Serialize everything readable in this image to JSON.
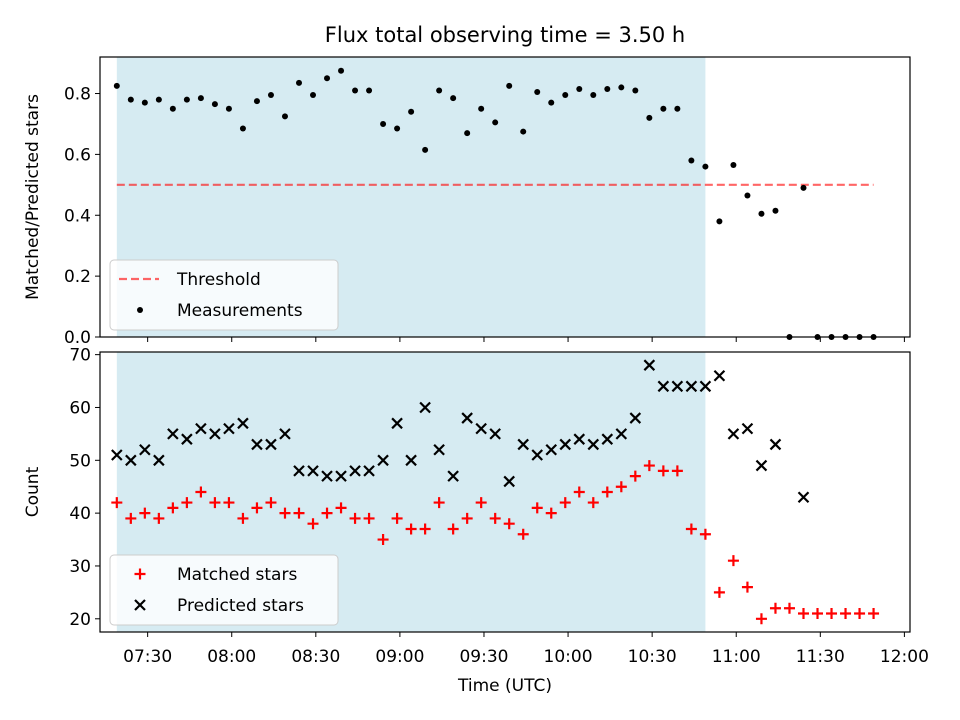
{
  "title": "Flux total observing time = 3.50 h",
  "colors": {
    "shade": "#add8e6",
    "threshold": "#ff0000",
    "measurement": "#000000",
    "matched": "#ff0000",
    "predicted": "#000000"
  },
  "chart_data": [
    {
      "type": "scatter",
      "ylabel": "Matched/Predicted stars",
      "xlabel": "",
      "xlim": [
        "07:13",
        "12:02"
      ],
      "ylim": [
        0.0,
        0.92
      ],
      "yticks": [
        "0.0",
        "0.2",
        "0.4",
        "0.6",
        "0.8"
      ],
      "shaded_span": [
        "07:19",
        "10:49"
      ],
      "legend_position": "lower-left",
      "threshold": {
        "name": "Threshold",
        "y": 0.5,
        "x": [
          "07:19",
          "11:49"
        ],
        "style": "dashed"
      },
      "series": [
        {
          "name": "Measurements",
          "marker": "dot",
          "points": [
            [
              "07:19",
              0.825
            ],
            [
              "07:24",
              0.78
            ],
            [
              "07:29",
              0.77
            ],
            [
              "07:34",
              0.78
            ],
            [
              "07:39",
              0.75
            ],
            [
              "07:44",
              0.78
            ],
            [
              "07:49",
              0.785
            ],
            [
              "07:54",
              0.765
            ],
            [
              "07:59",
              0.75
            ],
            [
              "08:04",
              0.685
            ],
            [
              "08:09",
              0.775
            ],
            [
              "08:14",
              0.795
            ],
            [
              "08:19",
              0.725
            ],
            [
              "08:24",
              0.835
            ],
            [
              "08:29",
              0.795
            ],
            [
              "08:34",
              0.85
            ],
            [
              "08:39",
              0.875
            ],
            [
              "08:44",
              0.81
            ],
            [
              "08:49",
              0.81
            ],
            [
              "08:54",
              0.7
            ],
            [
              "08:59",
              0.685
            ],
            [
              "09:04",
              0.74
            ],
            [
              "09:09",
              0.615
            ],
            [
              "09:14",
              0.81
            ],
            [
              "09:19",
              0.785
            ],
            [
              "09:24",
              0.67
            ],
            [
              "09:29",
              0.75
            ],
            [
              "09:34",
              0.705
            ],
            [
              "09:39",
              0.825
            ],
            [
              "09:44",
              0.675
            ],
            [
              "09:49",
              0.805
            ],
            [
              "09:54",
              0.77
            ],
            [
              "09:59",
              0.795
            ],
            [
              "10:04",
              0.815
            ],
            [
              "10:09",
              0.795
            ],
            [
              "10:14",
              0.815
            ],
            [
              "10:19",
              0.82
            ],
            [
              "10:24",
              0.81
            ],
            [
              "10:29",
              0.72
            ],
            [
              "10:34",
              0.75
            ],
            [
              "10:39",
              0.75
            ],
            [
              "10:44",
              0.58
            ],
            [
              "10:49",
              0.56
            ],
            [
              "10:54",
              0.38
            ],
            [
              "10:59",
              0.565
            ],
            [
              "11:04",
              0.465
            ],
            [
              "11:09",
              0.405
            ],
            [
              "11:14",
              0.415
            ],
            [
              "11:19",
              0.0
            ],
            [
              "11:24",
              0.49
            ],
            [
              "11:29",
              0.0
            ],
            [
              "11:34",
              0.0
            ],
            [
              "11:39",
              0.0
            ],
            [
              "11:44",
              0.0
            ],
            [
              "11:49",
              0.0
            ]
          ]
        }
      ]
    },
    {
      "type": "scatter",
      "ylabel": "Count",
      "xlabel": "Time (UTC)",
      "xlim": [
        "07:13",
        "12:02"
      ],
      "ylim": [
        17.5,
        70.5
      ],
      "yticks": [
        "20",
        "30",
        "40",
        "50",
        "60",
        "70"
      ],
      "xticks": [
        "07:30",
        "08:00",
        "08:30",
        "09:00",
        "09:30",
        "10:00",
        "10:30",
        "11:00",
        "11:30",
        "12:00"
      ],
      "shaded_span": [
        "07:19",
        "10:49"
      ],
      "legend_position": "lower-left",
      "series": [
        {
          "name": "Matched stars",
          "marker": "plus",
          "points": [
            [
              "07:19",
              42
            ],
            [
              "07:24",
              39
            ],
            [
              "07:29",
              40
            ],
            [
              "07:34",
              39
            ],
            [
              "07:39",
              41
            ],
            [
              "07:44",
              42
            ],
            [
              "07:49",
              44
            ],
            [
              "07:54",
              42
            ],
            [
              "07:59",
              42
            ],
            [
              "08:04",
              39
            ],
            [
              "08:09",
              41
            ],
            [
              "08:14",
              42
            ],
            [
              "08:19",
              40
            ],
            [
              "08:24",
              40
            ],
            [
              "08:29",
              38
            ],
            [
              "08:34",
              40
            ],
            [
              "08:39",
              41
            ],
            [
              "08:44",
              39
            ],
            [
              "08:49",
              39
            ],
            [
              "08:54",
              35
            ],
            [
              "08:59",
              39
            ],
            [
              "09:04",
              37
            ],
            [
              "09:09",
              37
            ],
            [
              "09:14",
              42
            ],
            [
              "09:19",
              37
            ],
            [
              "09:24",
              39
            ],
            [
              "09:29",
              42
            ],
            [
              "09:34",
              39
            ],
            [
              "09:39",
              38
            ],
            [
              "09:44",
              36
            ],
            [
              "09:49",
              41
            ],
            [
              "09:54",
              40
            ],
            [
              "09:59",
              42
            ],
            [
              "10:04",
              44
            ],
            [
              "10:09",
              42
            ],
            [
              "10:14",
              44
            ],
            [
              "10:19",
              45
            ],
            [
              "10:24",
              47
            ],
            [
              "10:29",
              49
            ],
            [
              "10:34",
              48
            ],
            [
              "10:39",
              48
            ],
            [
              "10:44",
              37
            ],
            [
              "10:49",
              36
            ],
            [
              "10:54",
              25
            ],
            [
              "10:59",
              31
            ],
            [
              "11:04",
              26
            ],
            [
              "11:09",
              20
            ],
            [
              "11:14",
              22
            ],
            [
              "11:19",
              22
            ],
            [
              "11:24",
              21
            ],
            [
              "11:29",
              21
            ],
            [
              "11:34",
              21
            ],
            [
              "11:39",
              21
            ],
            [
              "11:44",
              21
            ],
            [
              "11:49",
              21
            ]
          ]
        },
        {
          "name": "Predicted stars",
          "marker": "x",
          "points": [
            [
              "07:19",
              51
            ],
            [
              "07:24",
              50
            ],
            [
              "07:29",
              52
            ],
            [
              "07:34",
              50
            ],
            [
              "07:39",
              55
            ],
            [
              "07:44",
              54
            ],
            [
              "07:49",
              56
            ],
            [
              "07:54",
              55
            ],
            [
              "07:59",
              56
            ],
            [
              "08:04",
              57
            ],
            [
              "08:09",
              53
            ],
            [
              "08:14",
              53
            ],
            [
              "08:19",
              55
            ],
            [
              "08:24",
              48
            ],
            [
              "08:29",
              48
            ],
            [
              "08:34",
              47
            ],
            [
              "08:39",
              47
            ],
            [
              "08:44",
              48
            ],
            [
              "08:49",
              48
            ],
            [
              "08:54",
              50
            ],
            [
              "08:59",
              57
            ],
            [
              "09:04",
              50
            ],
            [
              "09:09",
              60
            ],
            [
              "09:14",
              52
            ],
            [
              "09:19",
              47
            ],
            [
              "09:24",
              58
            ],
            [
              "09:29",
              56
            ],
            [
              "09:34",
              55
            ],
            [
              "09:39",
              46
            ],
            [
              "09:44",
              53
            ],
            [
              "09:49",
              51
            ],
            [
              "09:54",
              52
            ],
            [
              "09:59",
              53
            ],
            [
              "10:04",
              54
            ],
            [
              "10:09",
              53
            ],
            [
              "10:14",
              54
            ],
            [
              "10:19",
              55
            ],
            [
              "10:24",
              58
            ],
            [
              "10:29",
              68
            ],
            [
              "10:34",
              64
            ],
            [
              "10:39",
              64
            ],
            [
              "10:44",
              64
            ],
            [
              "10:49",
              64
            ],
            [
              "10:54",
              66
            ],
            [
              "10:59",
              55
            ],
            [
              "11:04",
              56
            ],
            [
              "11:09",
              49
            ],
            [
              "11:14",
              53
            ],
            [
              "11:24",
              43
            ]
          ]
        }
      ]
    }
  ]
}
